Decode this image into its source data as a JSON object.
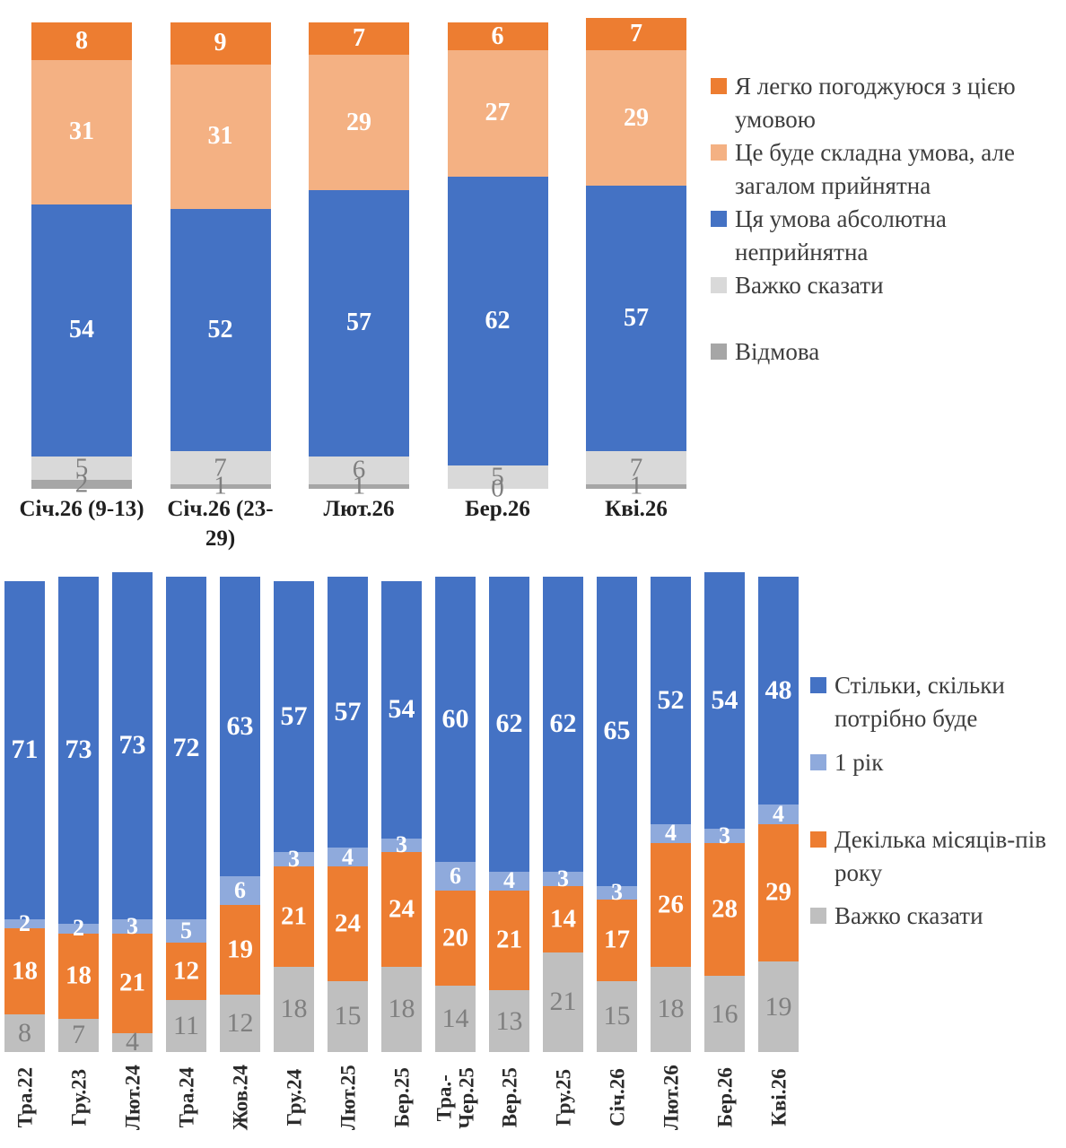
{
  "chart_data": [
    {
      "type": "bar",
      "stacked": true,
      "unit": "percent",
      "ylim": [
        0,
        100
      ],
      "grid": false,
      "legend_position": "right",
      "categories": [
        "Січ.26 (9-13)",
        "Січ.26 (23-29)",
        "Лют.26",
        "Бер.26",
        "Кві.26"
      ],
      "series_bottom_to_top": [
        {
          "name": "Відмова",
          "color": "#a6a6a6",
          "label_color": "#7f7f7f",
          "label_bold": false,
          "values": [
            2,
            1,
            1,
            0,
            1
          ]
        },
        {
          "name": "Важко сказати",
          "color": "#d9d9d9",
          "label_color": "#7f7f7f",
          "label_bold": false,
          "values": [
            5,
            7,
            6,
            5,
            7
          ]
        },
        {
          "name": "Ця умова абсолютна неприйнятна",
          "color": "#4472c4",
          "label_color": "#ffffff",
          "label_bold": true,
          "values": [
            54,
            52,
            57,
            62,
            57
          ]
        },
        {
          "name": "Це буде складна умова, але загалом прийнятна",
          "color": "#f4b183",
          "label_color": "#ffffff",
          "label_bold": true,
          "values": [
            31,
            31,
            29,
            27,
            29
          ]
        },
        {
          "name": "Я легко погоджуюся з цією умовою",
          "color": "#ed7d31",
          "label_color": "#ffffff",
          "label_bold": true,
          "values": [
            8,
            9,
            7,
            6,
            7
          ]
        }
      ],
      "legend": [
        {
          "label": "Я легко погоджуюся з цією умовою",
          "color": "#ed7d31"
        },
        {
          "label": "Це буде складна умова, але загалом прийнятна",
          "color": "#f4b183"
        },
        {
          "label": "Ця умова абсолютна неприйнятна",
          "color": "#4472c4"
        },
        {
          "label": "Важко сказати",
          "color": "#d9d9d9"
        },
        {
          "label": "Відмова",
          "color": "#a6a6a6"
        }
      ]
    },
    {
      "type": "bar",
      "stacked": true,
      "unit": "percent",
      "ylim": [
        0,
        100
      ],
      "grid": false,
      "legend_position": "right",
      "categories": [
        "Тра.22",
        "Гру.23",
        "Лют.24",
        "Тра.24",
        "Жов.24",
        "Гру.24",
        "Лют.25",
        "Бер.25",
        "Тра.-Чер.25",
        "Вер.25",
        "Гру.25",
        "Січ.26",
        "Лют.26",
        "Бер.26",
        "Кві.26"
      ],
      "series_bottom_to_top": [
        {
          "name": "Важко сказати",
          "color": "#bfbfbf",
          "label_color": "#7f7f7f",
          "label_bold": false,
          "values": [
            8,
            7,
            4,
            11,
            12,
            18,
            15,
            18,
            14,
            13,
            21,
            15,
            18,
            16,
            19
          ]
        },
        {
          "name": "Декілька місяців-пів року",
          "color": "#ed7d31",
          "label_color": "#ffffff",
          "label_bold": true,
          "values": [
            18,
            18,
            21,
            12,
            19,
            21,
            24,
            24,
            20,
            21,
            14,
            17,
            26,
            28,
            29
          ]
        },
        {
          "name": "1 рік",
          "color": "#8faadc",
          "label_color": "#ffffff",
          "label_bold": true,
          "values": [
            2,
            2,
            3,
            5,
            6,
            3,
            4,
            3,
            6,
            4,
            3,
            3,
            4,
            3,
            4
          ]
        },
        {
          "name": "Стільки, скільки потрібно буде",
          "color": "#4472c4",
          "label_color": "#ffffff",
          "label_bold": true,
          "values": [
            71,
            73,
            73,
            72,
            63,
            57,
            57,
            54,
            60,
            62,
            62,
            65,
            52,
            54,
            48
          ]
        }
      ],
      "legend": [
        {
          "label": "Стільки, скільки потрібно буде",
          "color": "#4472c4"
        },
        {
          "label": "1 рік",
          "color": "#8faadc"
        },
        {
          "label": "Декілька місяців-пів року",
          "color": "#ed7d31"
        },
        {
          "label": "Важко сказати",
          "color": "#bfbfbf"
        }
      ]
    }
  ]
}
